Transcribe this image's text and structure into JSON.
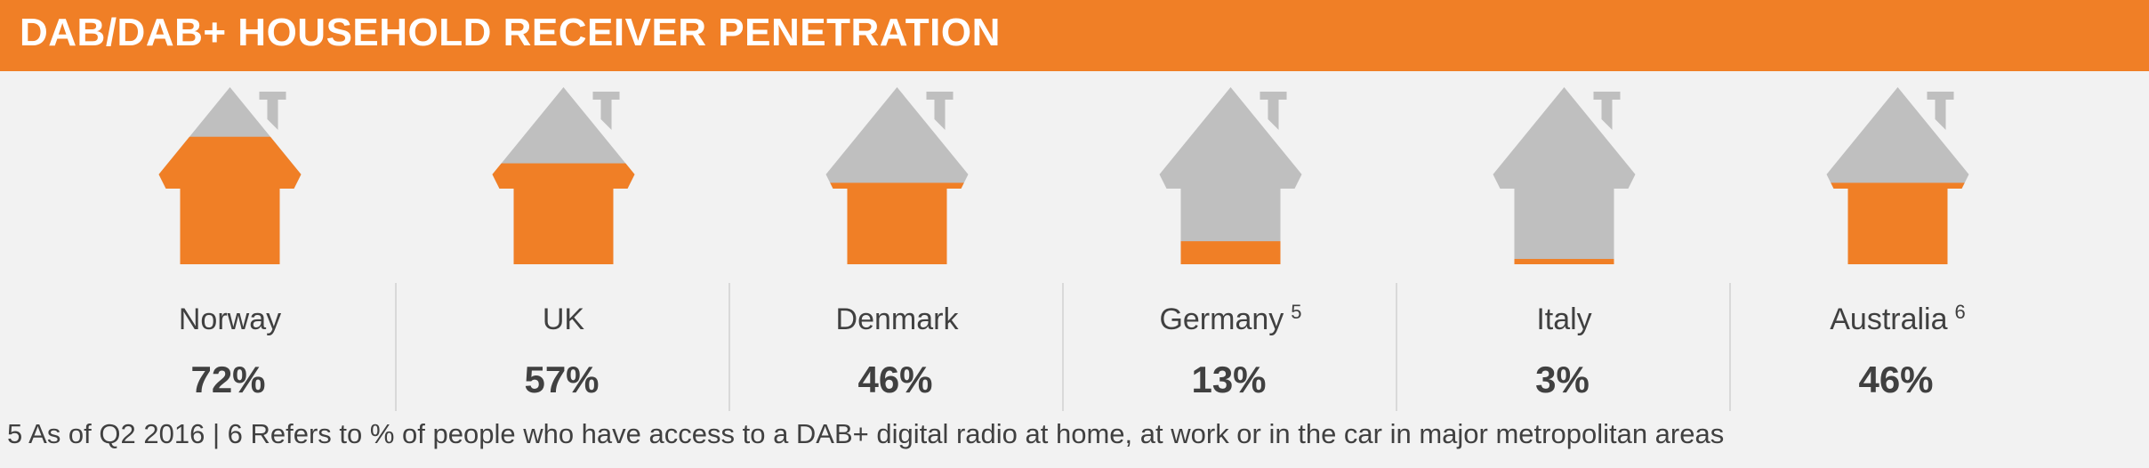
{
  "header": {
    "title": "DAB/DAB+ HOUSEHOLD RECEIVER PENETRATION"
  },
  "colors": {
    "accent": "#f07f26",
    "house_empty": "#bfbfbf",
    "divider": "#d9d9d9",
    "text": "#404040"
  },
  "chart_data": {
    "type": "pictograph",
    "title": "DAB/DAB+ HOUSEHOLD RECEIVER PENETRATION",
    "unit": "%",
    "categories": [
      {
        "name": "Norway",
        "footnote_ref": "",
        "value": 72,
        "label": "72%"
      },
      {
        "name": "UK",
        "footnote_ref": "",
        "value": 57,
        "label": "57%"
      },
      {
        "name": "Denmark",
        "footnote_ref": "",
        "value": 46,
        "label": "46%"
      },
      {
        "name": "Germany",
        "footnote_ref": "5",
        "value": 13,
        "label": "13%"
      },
      {
        "name": "Italy",
        "footnote_ref": "",
        "value": 3,
        "label": "3%"
      },
      {
        "name": "Australia",
        "footnote_ref": "6",
        "value": 46,
        "label": "46%"
      }
    ]
  },
  "footnote": "5 As of Q2 2016 | 6 Refers to % of people who have access to a DAB+ digital radio at home, at work or in the car in major metropolitan areas"
}
